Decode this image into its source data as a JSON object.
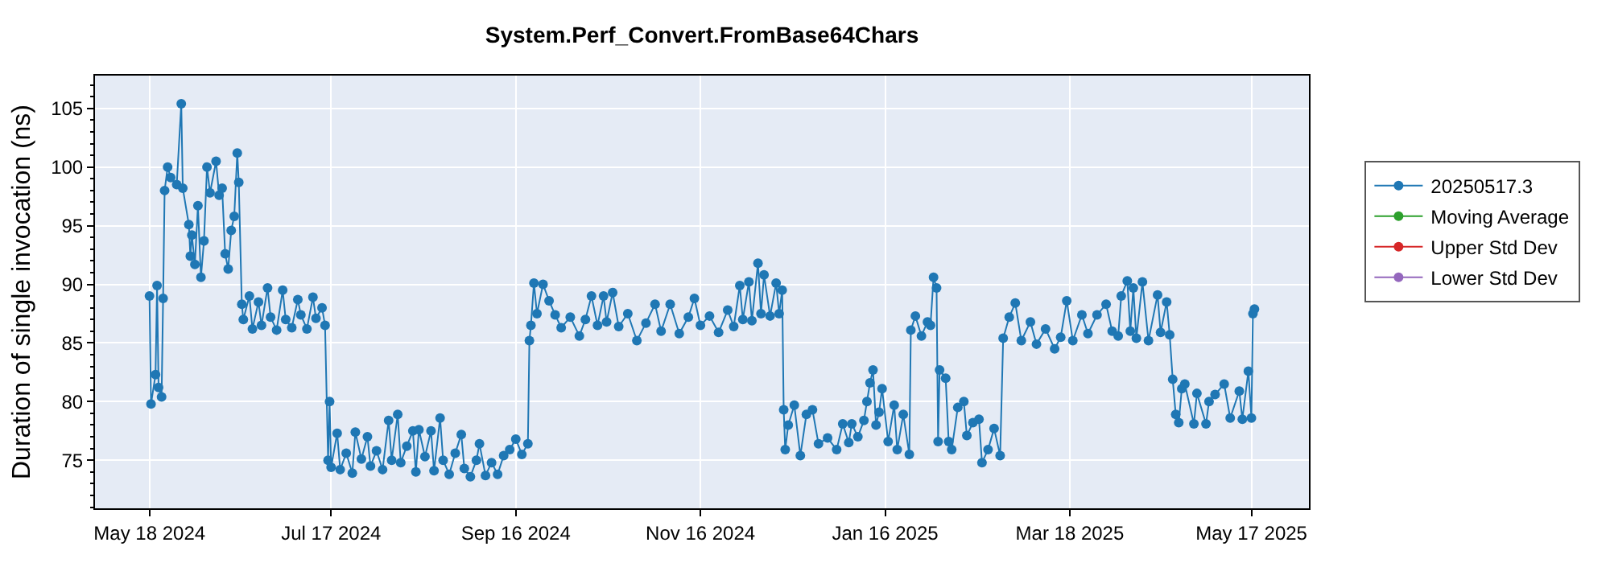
{
  "chart_data": {
    "type": "line",
    "title": "System.Perf_Convert.FromBase64Chars",
    "ylabel": "Duration of single invocation (ns)",
    "xlim": [
      "2024-04-30",
      "2025-06-05"
    ],
    "xticks": [
      {
        "value": "2024-05-18",
        "label": "May 18 2024"
      },
      {
        "value": "2024-07-17",
        "label": "Jul 17 2024"
      },
      {
        "value": "2024-09-16",
        "label": "Sep 16 2024"
      },
      {
        "value": "2024-11-16",
        "label": "Nov 16 2024"
      },
      {
        "value": "2025-01-16",
        "label": "Jan 16 2025"
      },
      {
        "value": "2025-03-18",
        "label": "Mar 18 2025"
      },
      {
        "value": "2025-05-17",
        "label": "May 17 2025"
      }
    ],
    "ylim": [
      70.9,
      107.8
    ],
    "yticks": [
      75,
      80,
      85,
      90,
      95,
      100,
      105
    ],
    "grid": true,
    "legend": "right",
    "marker": "circle",
    "line_style": "solid",
    "series": [
      {
        "name": "20250517.3",
        "color": "#1f77b4",
        "x": [
          "2024-05-18",
          "2024-05-18T12:00",
          "2024-05-20",
          "2024-05-20T12:00",
          "2024-05-21",
          "2024-05-22",
          "2024-05-22T12:00",
          "2024-05-23",
          "2024-05-24",
          "2024-05-25",
          "2024-05-27",
          "2024-05-28T12:00",
          "2024-05-29",
          "2024-05-31",
          "2024-05-31T12:00",
          "2024-06-01",
          "2024-06-02",
          "2024-06-03",
          "2024-06-04",
          "2024-06-05",
          "2024-06-06",
          "2024-06-07",
          "2024-06-09",
          "2024-06-10",
          "2024-06-11",
          "2024-06-12",
          "2024-06-13",
          "2024-06-14",
          "2024-06-15",
          "2024-06-16",
          "2024-06-16T12:00",
          "2024-06-17T12:00",
          "2024-06-18",
          "2024-06-20",
          "2024-06-21",
          "2024-06-23",
          "2024-06-24",
          "2024-06-26",
          "2024-06-27",
          "2024-06-29",
          "2024-07-01",
          "2024-07-02",
          "2024-07-04",
          "2024-07-06",
          "2024-07-07",
          "2024-07-09",
          "2024-07-11",
          "2024-07-12",
          "2024-07-14",
          "2024-07-15",
          "2024-07-16",
          "2024-07-16T12:00",
          "2024-07-17",
          "2024-07-19",
          "2024-07-20",
          "2024-07-22",
          "2024-07-24",
          "2024-07-25",
          "2024-07-27",
          "2024-07-29",
          "2024-07-30",
          "2024-08-01",
          "2024-08-03",
          "2024-08-05",
          "2024-08-06",
          "2024-08-08",
          "2024-08-09",
          "2024-08-11",
          "2024-08-13",
          "2024-08-14",
          "2024-08-15",
          "2024-08-17",
          "2024-08-19",
          "2024-08-20",
          "2024-08-22",
          "2024-08-23",
          "2024-08-25",
          "2024-08-27",
          "2024-08-29",
          "2024-08-30",
          "2024-09-01",
          "2024-09-03",
          "2024-09-04",
          "2024-09-06",
          "2024-09-08",
          "2024-09-10",
          "2024-09-12",
          "2024-09-14",
          "2024-09-16",
          "2024-09-18",
          "2024-09-20",
          "2024-09-20T12:00",
          "2024-09-21",
          "2024-09-22",
          "2024-09-23",
          "2024-09-25",
          "2024-09-27",
          "2024-09-29",
          "2024-10-01",
          "2024-10-04",
          "2024-10-07",
          "2024-10-09",
          "2024-10-11",
          "2024-10-13",
          "2024-10-15",
          "2024-10-16",
          "2024-10-18",
          "2024-10-20",
          "2024-10-23",
          "2024-10-26",
          "2024-10-29",
          "2024-11-01",
          "2024-11-03",
          "2024-11-06",
          "2024-11-09",
          "2024-11-12",
          "2024-11-14",
          "2024-11-16",
          "2024-11-19",
          "2024-11-22",
          "2024-11-25",
          "2024-11-27",
          "2024-11-29",
          "2024-11-30",
          "2024-12-02",
          "2024-12-03",
          "2024-12-05",
          "2024-12-06",
          "2024-12-07",
          "2024-12-09",
          "2024-12-11",
          "2024-12-12",
          "2024-12-13",
          "2024-12-13T12:00",
          "2024-12-14",
          "2024-12-15",
          "2024-12-17",
          "2024-12-19",
          "2024-12-21",
          "2024-12-23",
          "2024-12-25",
          "2024-12-28",
          "2024-12-31",
          "2025-01-02",
          "2025-01-04",
          "2025-01-05",
          "2025-01-07",
          "2025-01-09",
          "2025-01-10",
          "2025-01-11",
          "2025-01-12",
          "2025-01-13",
          "2025-01-14",
          "2025-01-15",
          "2025-01-17",
          "2025-01-19",
          "2025-01-20",
          "2025-01-22",
          "2025-01-24",
          "2025-01-24T12:00",
          "2025-01-26",
          "2025-01-28",
          "2025-01-30",
          "2025-01-31",
          "2025-02-01",
          "2025-02-02",
          "2025-02-02T12:00",
          "2025-02-03",
          "2025-02-05",
          "2025-02-06",
          "2025-02-07",
          "2025-02-09",
          "2025-02-11",
          "2025-02-12",
          "2025-02-14",
          "2025-02-16",
          "2025-02-17",
          "2025-02-19",
          "2025-02-21",
          "2025-02-23",
          "2025-02-24",
          "2025-02-26",
          "2025-02-28",
          "2025-03-02",
          "2025-03-05",
          "2025-03-07",
          "2025-03-10",
          "2025-03-13",
          "2025-03-15",
          "2025-03-17",
          "2025-03-19",
          "2025-03-22",
          "2025-03-24",
          "2025-03-27",
          "2025-03-30",
          "2025-04-01",
          "2025-04-03",
          "2025-04-04",
          "2025-04-06",
          "2025-04-07",
          "2025-04-08",
          "2025-04-09",
          "2025-04-11",
          "2025-04-13",
          "2025-04-16",
          "2025-04-17",
          "2025-04-19",
          "2025-04-20",
          "2025-04-21",
          "2025-04-22",
          "2025-04-23",
          "2025-04-24",
          "2025-04-25",
          "2025-04-28",
          "2025-04-29",
          "2025-05-02",
          "2025-05-03",
          "2025-05-05",
          "2025-05-08",
          "2025-05-10",
          "2025-05-13",
          "2025-05-14",
          "2025-05-16",
          "2025-05-17",
          "2025-05-17T12:00",
          "2025-05-18"
        ],
        "values": [
          89.0,
          79.8,
          82.3,
          89.9,
          81.2,
          80.4,
          88.8,
          98.0,
          100.0,
          99.1,
          98.5,
          105.4,
          98.2,
          95.1,
          92.4,
          94.2,
          91.7,
          96.7,
          90.6,
          93.7,
          100.0,
          97.8,
          100.5,
          97.6,
          98.2,
          92.6,
          91.3,
          94.6,
          95.8,
          101.2,
          98.7,
          88.3,
          87.0,
          89.0,
          86.2,
          88.5,
          86.5,
          89.7,
          87.2,
          86.1,
          89.5,
          87.0,
          86.3,
          88.7,
          87.4,
          86.2,
          88.9,
          87.1,
          88.0,
          86.5,
          75.0,
          80.0,
          74.4,
          77.3,
          74.2,
          75.6,
          73.9,
          77.4,
          75.1,
          77.0,
          74.5,
          75.8,
          74.2,
          78.4,
          75.0,
          78.9,
          74.8,
          76.2,
          77.5,
          74.0,
          77.6,
          75.3,
          77.5,
          74.1,
          78.6,
          75.0,
          73.8,
          75.6,
          77.2,
          74.3,
          73.6,
          75.0,
          76.4,
          73.7,
          74.8,
          73.8,
          75.4,
          75.9,
          76.8,
          75.5,
          76.4,
          85.2,
          86.5,
          90.1,
          87.5,
          90.0,
          88.6,
          87.4,
          86.3,
          87.2,
          85.6,
          87.0,
          89.0,
          86.5,
          89.0,
          86.8,
          89.3,
          86.4,
          87.5,
          85.2,
          86.7,
          88.3,
          86.0,
          88.3,
          85.8,
          87.2,
          88.8,
          86.5,
          87.3,
          85.9,
          87.8,
          86.4,
          89.9,
          87.0,
          90.2,
          86.9,
          91.8,
          87.5,
          90.8,
          87.3,
          90.1,
          87.5,
          89.5,
          79.3,
          75.9,
          78.0,
          79.7,
          75.4,
          78.9,
          79.3,
          76.4,
          76.9,
          75.9,
          78.1,
          76.5,
          78.1,
          77.0,
          78.4,
          80.0,
          81.6,
          82.7,
          78.0,
          79.1,
          81.1,
          76.6,
          79.7,
          75.9,
          78.9,
          75.5,
          86.1,
          87.3,
          85.6,
          86.8,
          86.5,
          90.6,
          89.7,
          76.6,
          82.7,
          82.0,
          76.6,
          75.9,
          79.5,
          80.0,
          77.1,
          78.2,
          78.5,
          74.8,
          75.9,
          77.7,
          75.4,
          85.4,
          87.2,
          88.4,
          85.2,
          86.8,
          84.9,
          86.2,
          84.5,
          85.5,
          88.6,
          85.2,
          87.4,
          85.8,
          87.4,
          88.3,
          86.0,
          85.6,
          89.0,
          90.3,
          86.0,
          89.7,
          85.4,
          90.2,
          85.2,
          89.1,
          85.9,
          88.5,
          85.7,
          81.9,
          78.9,
          78.2,
          81.1,
          81.5,
          78.1,
          80.7,
          78.1,
          80.0,
          80.6,
          81.5,
          78.6,
          80.9,
          78.5,
          82.6,
          78.6,
          87.5,
          87.9
        ]
      },
      {
        "name": "Moving Average",
        "color": "#2ca02c"
      },
      {
        "name": "Upper Std Dev",
        "color": "#d62728"
      },
      {
        "name": "Lower Std Dev",
        "color": "#9467bd"
      }
    ]
  }
}
